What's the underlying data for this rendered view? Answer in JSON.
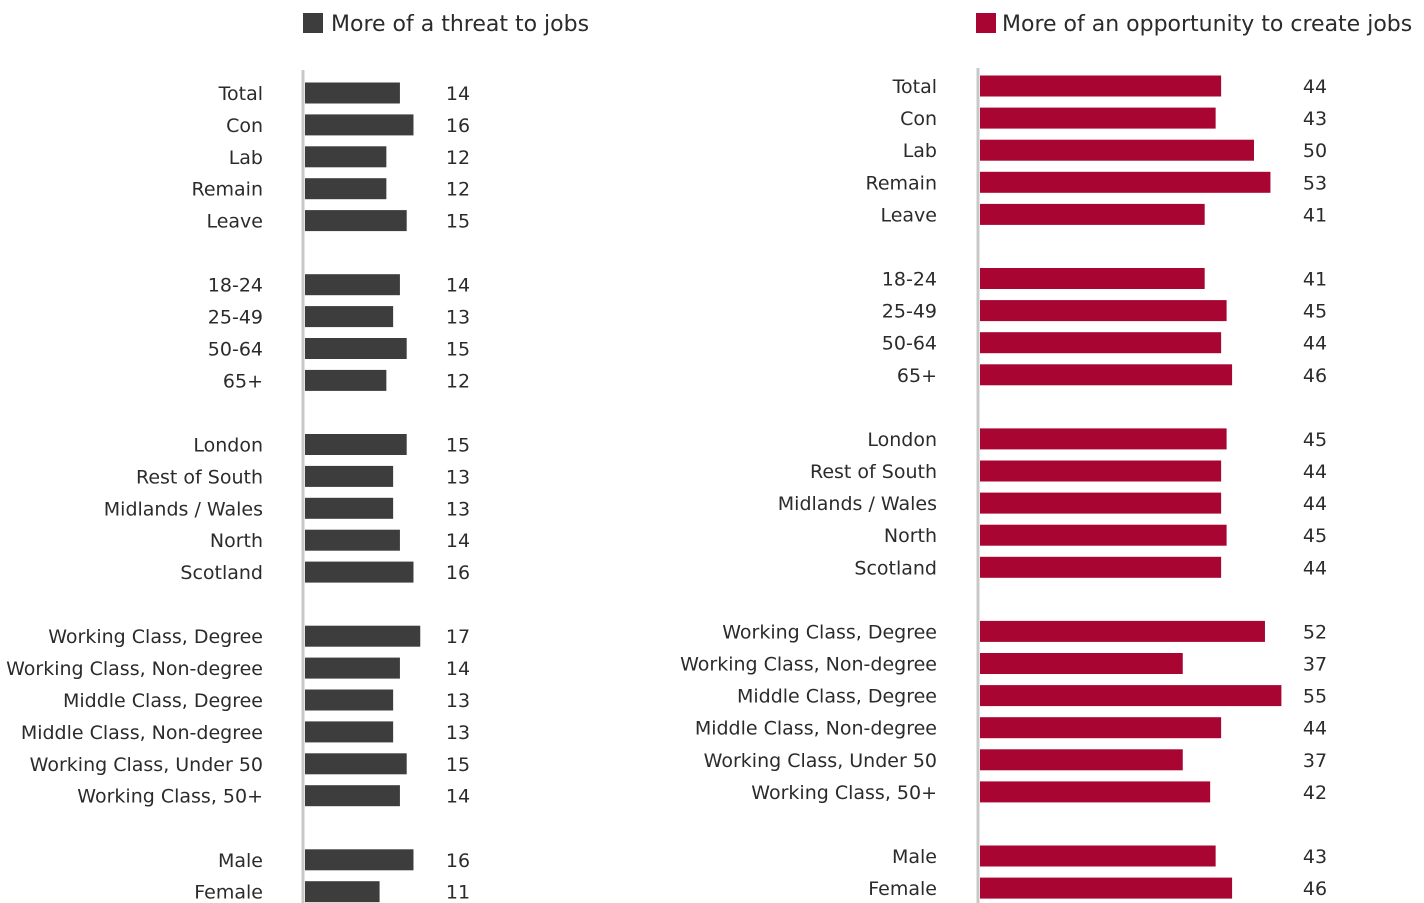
{
  "chart_data": [
    {
      "type": "bar",
      "orientation": "horizontal",
      "legend": "More of a threat to jobs",
      "color": "#3d3d3d",
      "categories": [
        "Total",
        "Con",
        "Lab",
        "Remain",
        "Leave",
        "18-24",
        "25-49",
        "50-64",
        "65+",
        "London",
        "Rest of South",
        "Midlands / Wales",
        "North",
        "Scotland",
        "Working Class, Degree",
        "Working Class, Non-degree",
        "Middle Class, Degree",
        "Middle Class, Non-degree",
        "Working Class, Under 50",
        "Working Class, 50+",
        "Male",
        "Female"
      ],
      "values": [
        14,
        16,
        12,
        12,
        15,
        14,
        13,
        15,
        12,
        15,
        13,
        13,
        14,
        16,
        17,
        14,
        13,
        13,
        15,
        14,
        16,
        11
      ],
      "data_labels": [
        "14",
        "16",
        "12",
        "12",
        "15",
        "14",
        "13",
        "15",
        "12",
        "15",
        "13",
        "13",
        "14",
        "16",
        "17",
        "14",
        "13",
        "13",
        "15",
        "14",
        "16",
        "11"
      ]
    },
    {
      "type": "bar",
      "orientation": "horizontal",
      "legend": "More of an opportunity to create jobs",
      "color": "#a80532",
      "categories": [
        "Total",
        "Con",
        "Lab",
        "Remain",
        "Leave",
        "18-24",
        "25-49",
        "50-64",
        "65+",
        "London",
        "Rest of South",
        "Midlands / Wales",
        "North",
        "Scotland",
        "Working Class, Degree",
        "Working Class, Non-degree",
        "Middle Class, Degree",
        "Middle Class, Non-degree",
        "Working Class, Under 50",
        "Working Class, 50+",
        "Male",
        "Female"
      ],
      "values": [
        44,
        43,
        50,
        53,
        41,
        41,
        45,
        44,
        46,
        45,
        44,
        44,
        45,
        44,
        52,
        37,
        55,
        44,
        37,
        42,
        43,
        46
      ],
      "data_labels": [
        "44",
        "43",
        "50",
        "53",
        "41",
        "41",
        "45",
        "44",
        "46",
        "45",
        "44",
        "44",
        "45",
        "44",
        "52",
        "37",
        "55",
        "44",
        "37",
        "42",
        "43",
        "46"
      ]
    }
  ]
}
